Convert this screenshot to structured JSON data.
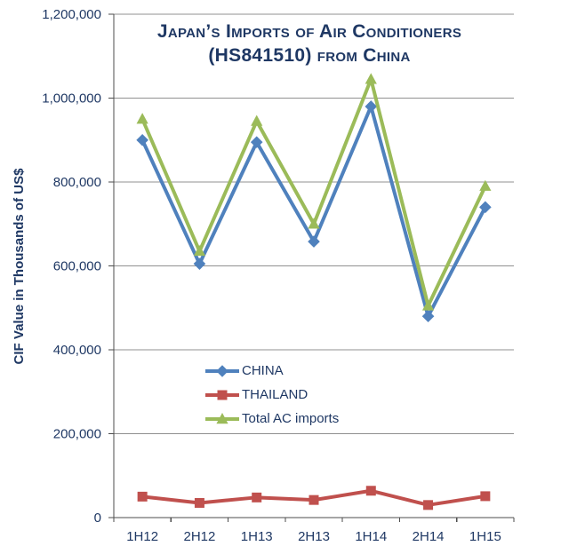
{
  "title": {
    "line1": "Japan’s Imports of Air Conditioners",
    "line2": "(HS841510) from China"
  },
  "y_axis": {
    "label": "CIF Value in Thousands of US$",
    "tick_labels": [
      "0",
      "200,000",
      "400,000",
      "600,000",
      "800,000",
      "1,000,000",
      "1,200,000"
    ]
  },
  "x_axis": {
    "categories": [
      "1H12",
      "2H12",
      "1H13",
      "2H13",
      "1H14",
      "2H14",
      "1H15"
    ]
  },
  "colors": {
    "text_navy": "#1F3864",
    "gridline": "#909090",
    "axis": "#4D4D4D",
    "china_blue": "#4F81BD",
    "thailand_red": "#C0504D",
    "total_green": "#9BBB59"
  },
  "chart_data": {
    "type": "line",
    "title": "Japan’s Imports of Air Conditioners (HS841510) from China",
    "xlabel": "",
    "ylabel": "CIF Value in Thousands of US$",
    "categories": [
      "1H12",
      "2H12",
      "1H13",
      "2H13",
      "1H14",
      "2H14",
      "1H15"
    ],
    "series": [
      {
        "name": "CHINA",
        "marker": "diamond",
        "color": "#4F81BD",
        "values": [
          900000,
          605000,
          895000,
          658000,
          980000,
          480000,
          740000
        ]
      },
      {
        "name": "THAILAND",
        "marker": "square",
        "color": "#C0504D",
        "values": [
          50000,
          35000,
          48000,
          42000,
          64000,
          30000,
          51000
        ]
      },
      {
        "name": "Total AC imports",
        "marker": "triangle",
        "color": "#9BBB59",
        "values": [
          950000,
          635000,
          945000,
          700000,
          1045000,
          505000,
          790000
        ]
      }
    ],
    "ylim": [
      0,
      1200000
    ],
    "ytick_step": 200000,
    "ytick_labels": [
      "0",
      "200,000",
      "400,000",
      "600,000",
      "800,000",
      "1,000,000",
      "1,200,000"
    ],
    "grid": "horizontal",
    "legend_position": "inside-left-middle"
  }
}
